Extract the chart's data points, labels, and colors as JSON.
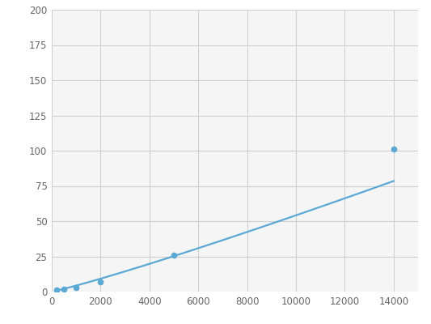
{
  "x": [
    200,
    500,
    1000,
    2000,
    5000,
    14000
  ],
  "y": [
    1,
    2,
    3,
    7,
    26,
    101
  ],
  "line_color": "#5ba8d4",
  "marker_color": "#5ba8d4",
  "marker_size": 4.5,
  "line_width": 1.6,
  "xlim": [
    0,
    15000
  ],
  "ylim": [
    0,
    200
  ],
  "xticks": [
    0,
    2000,
    4000,
    6000,
    8000,
    10000,
    12000,
    14000
  ],
  "yticks": [
    0,
    25,
    50,
    75,
    100,
    125,
    150,
    175,
    200
  ],
  "grid_color": "#d0d0d0",
  "background_color": "#f5f5f5",
  "figure_facecolor": "#ffffff",
  "tick_labelsize": 8.5,
  "tick_color": "#666666"
}
